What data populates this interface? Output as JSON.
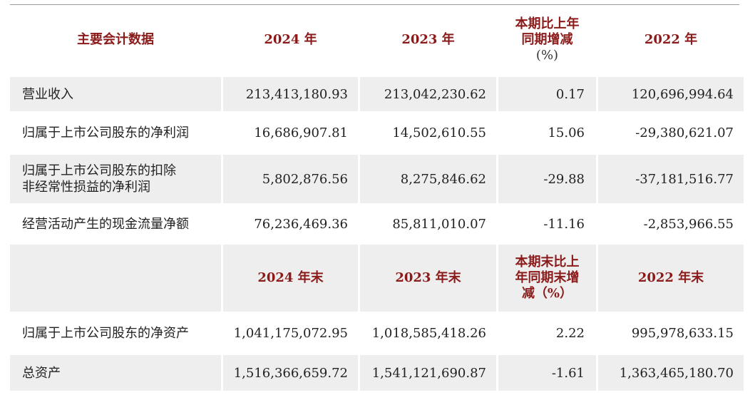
{
  "header1": {
    "col0": "主要会计数据",
    "col1": "2024 年",
    "col2": "2023 年",
    "col3_l1": "本期比上年",
    "col3_l2": "同期增减",
    "col3_l3": "(%)",
    "col4": "2022 年"
  },
  "rows1": [
    {
      "label_l1": "营业收入",
      "label_l2": "",
      "v2024": "213,413,180.93",
      "v2023": "213,042,230.62",
      "change": "0.17",
      "v2022": "120,696,994.64"
    },
    {
      "label_l1": "归属于上市公司股东的净利润",
      "label_l2": "",
      "v2024": "16,686,907.81",
      "v2023": "14,502,610.55",
      "change": "15.06",
      "v2022": "-29,380,621.07"
    },
    {
      "label_l1": "归属于上市公司股东的扣除",
      "label_l2": "非经常性损益的净利润",
      "v2024": "5,802,876.56",
      "v2023": "8,275,846.62",
      "change": "-29.88",
      "v2022": "-37,181,516.77"
    },
    {
      "label_l1": "经营活动产生的现金流量净额",
      "label_l2": "",
      "v2024": "76,236,469.36",
      "v2023": "85,811,010.07",
      "change": "-11.16",
      "v2022": "-2,853,966.55"
    }
  ],
  "header2": {
    "col0": "",
    "col1": "2024 年末",
    "col2": "2023 年末",
    "col3_l1": "本期末比上",
    "col3_l2": "年同期末增",
    "col3_l3": "减（%）",
    "col4": "2022 年末"
  },
  "rows2": [
    {
      "label_l1": "归属于上市公司股东的净资产",
      "v2024": "1,041,175,072.95",
      "v2023": "1,018,585,418.26",
      "change": "2.22",
      "v2022": "995,978,633.15"
    },
    {
      "label_l1": "总资产",
      "v2024": "1,516,366,659.72",
      "v2023": "1,541,121,690.87",
      "change": "-1.61",
      "v2022": "1,363,465,180.70"
    }
  ]
}
